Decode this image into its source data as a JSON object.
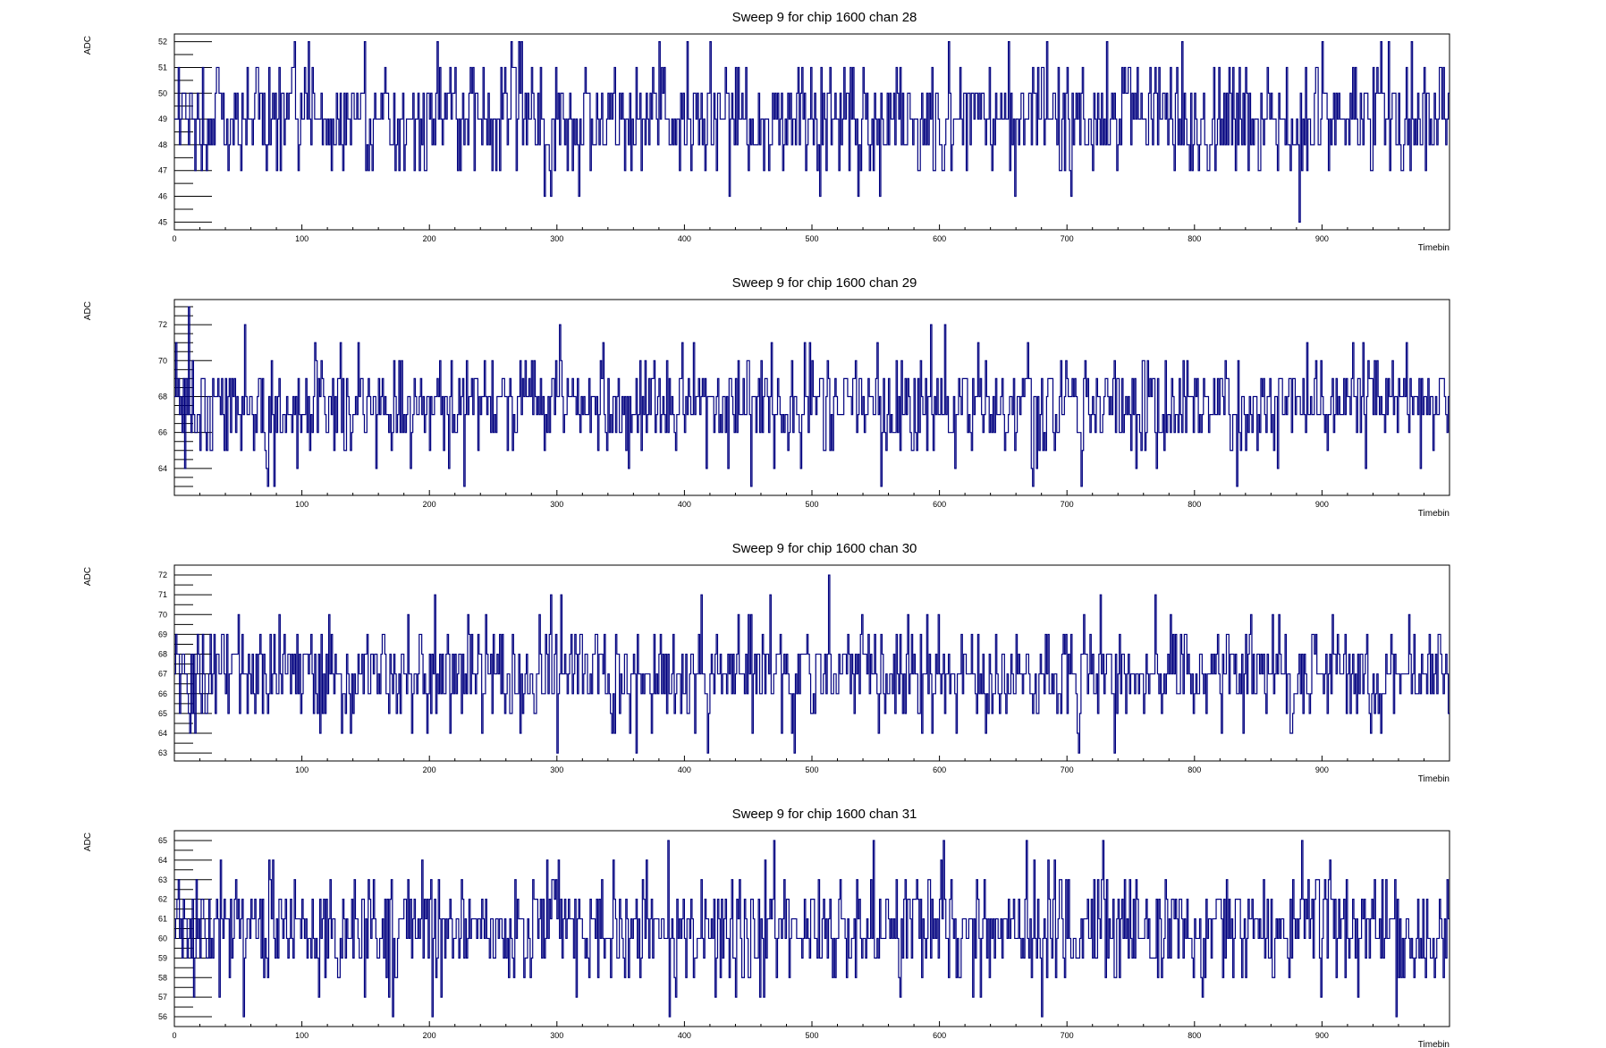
{
  "colors": {
    "trace": "#00007f",
    "frame": "#000000",
    "background": "#ffffff"
  },
  "chart_data": [
    {
      "type": "line",
      "title": "Sweep 9 for chip 1600 chan 28",
      "xlabel": "Timebin",
      "ylabel": "ADC",
      "xlim": [
        0,
        1000
      ],
      "ylim": [
        44.7,
        52.3
      ],
      "x_ticks": [
        0,
        100,
        200,
        300,
        400,
        500,
        600,
        700,
        800,
        900
      ],
      "y_ticks": [
        45,
        46,
        47,
        48,
        49,
        50,
        51,
        52
      ],
      "baseline": 49,
      "noise": 1.15,
      "min": 45,
      "max": 52,
      "spikes": [
        [
          882,
          45
        ],
        [
          420,
          52
        ],
        [
          380,
          52
        ],
        [
          94,
          52
        ],
        [
          149,
          52
        ]
      ],
      "series": [
        {
          "values": []
        }
      ]
    },
    {
      "type": "line",
      "title": "Sweep 9 for chip 1600 chan 29",
      "xlabel": "Timebin",
      "ylabel": "ADC",
      "xlim": [
        0,
        1000
      ],
      "ylim": [
        62.5,
        73.4
      ],
      "x_ticks": [
        100,
        200,
        300,
        400,
        500,
        600,
        700,
        800,
        900
      ],
      "y_ticks": [
        64,
        66,
        68,
        70,
        72
      ],
      "baseline": 67.5,
      "noise": 1.45,
      "min": 63,
      "max": 73,
      "spikes": [
        [
          11,
          73
        ],
        [
          55,
          72
        ],
        [
          302,
          72
        ],
        [
          452,
          63
        ],
        [
          673,
          63
        ],
        [
          833,
          63
        ],
        [
          73,
          63
        ]
      ],
      "series": [
        {
          "values": []
        }
      ]
    },
    {
      "type": "line",
      "title": "Sweep 9 for chip 1600 chan 30",
      "xlabel": "Timebin",
      "ylabel": "ADC",
      "xlim": [
        0,
        1000
      ],
      "ylim": [
        62.6,
        72.5
      ],
      "x_ticks": [
        100,
        200,
        300,
        400,
        500,
        600,
        700,
        800,
        900
      ],
      "y_ticks": [
        63,
        64,
        65,
        66,
        67,
        68,
        69,
        70,
        71,
        72
      ],
      "baseline": 67,
      "noise": 1.3,
      "min": 63,
      "max": 72,
      "spikes": [
        [
          513,
          72
        ],
        [
          362,
          63
        ],
        [
          418,
          63
        ],
        [
          709,
          63
        ],
        [
          737,
          63
        ]
      ],
      "series": [
        {
          "values": []
        }
      ]
    },
    {
      "type": "line",
      "title": "Sweep 9 for chip 1600 chan 31",
      "xlabel": "Timebin",
      "ylabel": "ADC",
      "xlim": [
        0,
        1000
      ],
      "ylim": [
        55.5,
        65.5
      ],
      "x_ticks": [
        0,
        100,
        200,
        300,
        400,
        500,
        600,
        700,
        800,
        900
      ],
      "y_ticks": [
        56,
        57,
        58,
        59,
        60,
        61,
        62,
        63,
        64,
        65
      ],
      "baseline": 60.5,
      "noise": 1.45,
      "min": 56,
      "max": 65,
      "spikes": [
        [
          388,
          56
        ],
        [
          958,
          56
        ],
        [
          470,
          65
        ],
        [
          548,
          65
        ],
        [
          728,
          65
        ],
        [
          668,
          65
        ]
      ],
      "series": [
        {
          "values": []
        }
      ]
    }
  ]
}
